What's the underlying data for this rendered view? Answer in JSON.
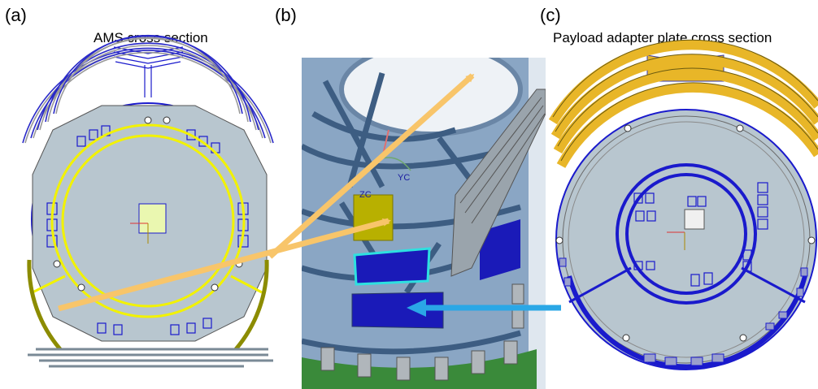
{
  "panels": {
    "a": {
      "letter": "(a)",
      "caption": "AMS cross section"
    },
    "b": {
      "letter": "(b)",
      "caption": ""
    },
    "c": {
      "letter": "(c)",
      "caption": "Payload adapter plate cross section"
    }
  },
  "cad_labels": {
    "zc": "ZC",
    "yc": "YC"
  },
  "colors": {
    "ring_blue": "#1a1acc",
    "highlight_yellow": "#f2f200",
    "orange_arrow": "#f8c56a",
    "cyan_arrow": "#2aa7e6",
    "plate_grey": "#b8c6cf",
    "olive": "#8c8c00",
    "radiator_gold": "#e8b628",
    "cad_blue": "#8aa6c4"
  }
}
